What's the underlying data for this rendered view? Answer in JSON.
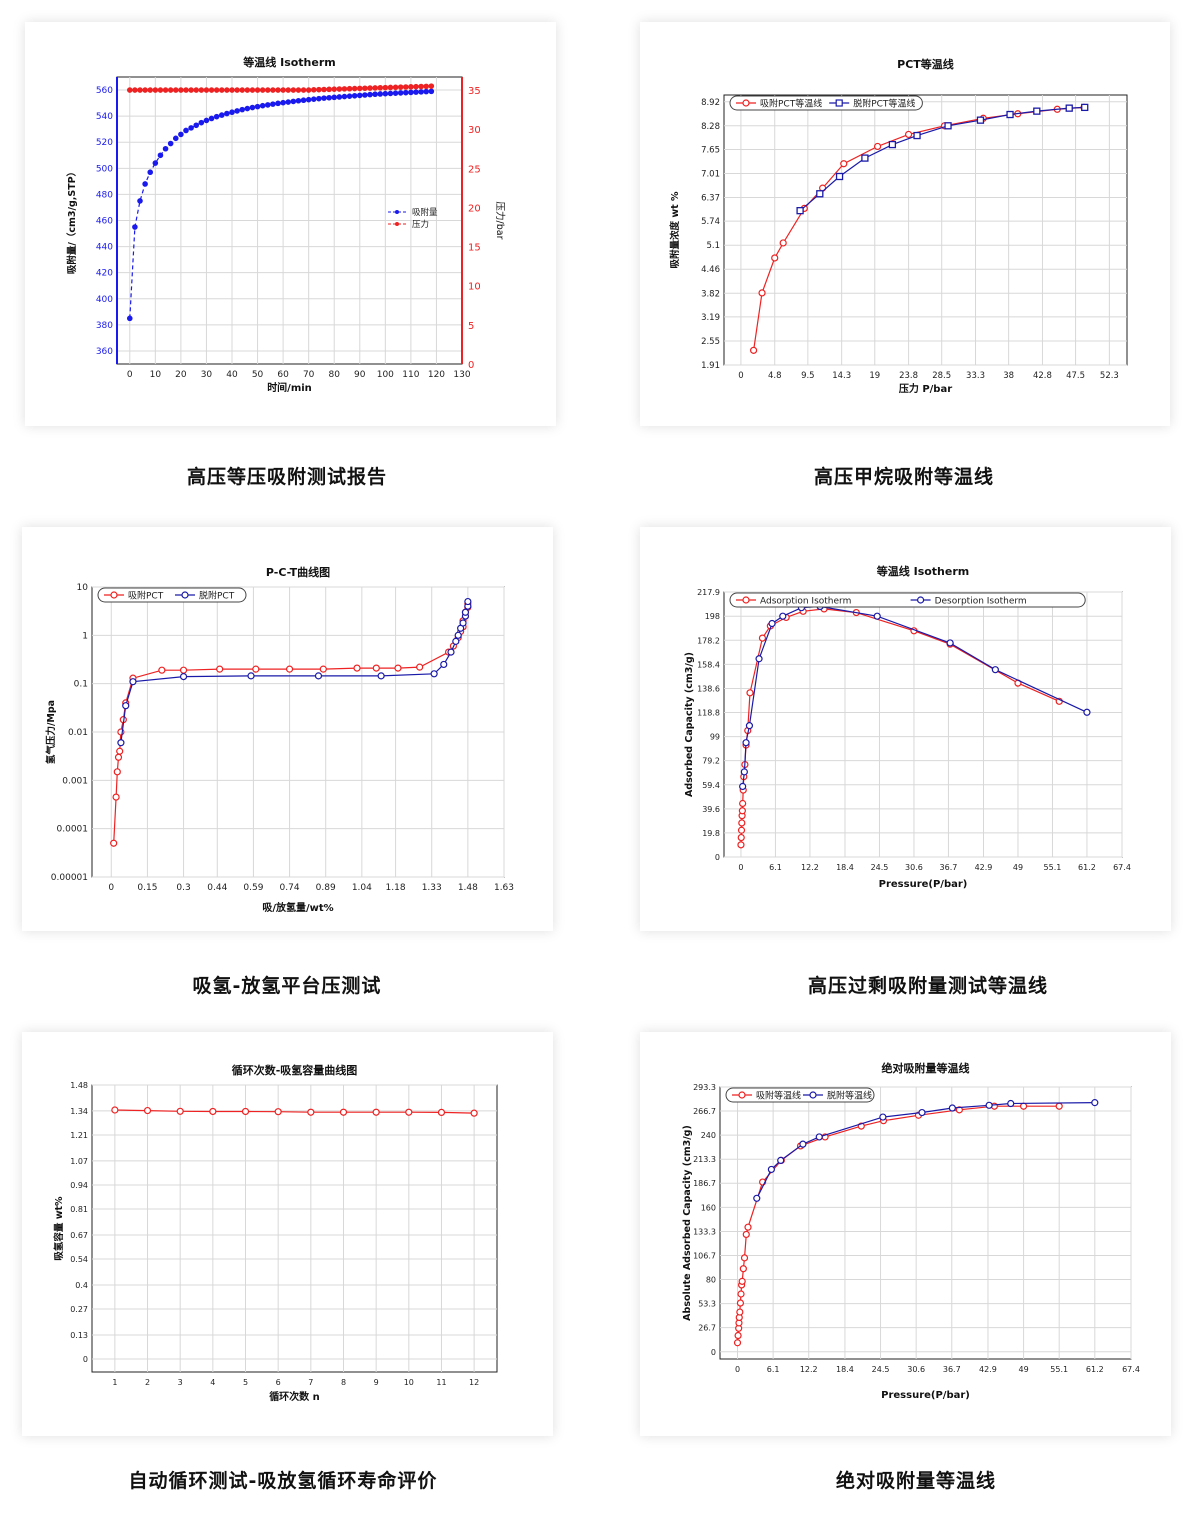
{
  "captions": [
    "高压等压吸附测试报告",
    "高压甲烷吸附等温线",
    "吸氢-放氢平台压测试",
    "高压过剩吸附量测试等温线",
    "自动循环测试-吸放氢循环寿命评价",
    "绝对吸附量等温线"
  ],
  "chart_data": [
    {
      "type": "scatter",
      "title": "等温线 Isotherm",
      "xlabel": "时间/min",
      "ylabel": "吸附量/（cm3/g,STP）",
      "y2label": "压力/bar",
      "xlim": [
        -5,
        130
      ],
      "ylim": [
        350,
        570
      ],
      "y2lim": [
        0,
        36.6667
      ],
      "xticks": [
        0,
        10,
        20,
        30,
        40,
        50,
        60,
        70,
        80,
        90,
        100,
        110,
        120,
        130
      ],
      "yticks": [
        360,
        380,
        400,
        420,
        440,
        460,
        480,
        500,
        520,
        540,
        560
      ],
      "y2ticks": [
        0,
        5,
        10,
        15,
        20,
        25,
        30,
        35
      ],
      "legend_position": "right",
      "series": [
        {
          "name": "吸附量",
          "color": "#1a1aee",
          "axis": "left",
          "line": "dash",
          "x": [
            0,
            2,
            4,
            6,
            8,
            10,
            12,
            14,
            16,
            18,
            20,
            22,
            24,
            26,
            28,
            30,
            32,
            34,
            36,
            38,
            40,
            42,
            44,
            46,
            48,
            50,
            52,
            54,
            56,
            58,
            60,
            62,
            64,
            66,
            68,
            70,
            72,
            74,
            76,
            78,
            80,
            82,
            84,
            86,
            88,
            90,
            92,
            94,
            96,
            98,
            100,
            102,
            104,
            106,
            108,
            110,
            112,
            114,
            116,
            118
          ],
          "y": [
            385,
            455,
            475,
            488,
            497,
            504,
            510,
            515,
            519,
            523,
            526,
            529,
            531,
            533,
            535,
            536.7,
            538.2,
            539.6,
            540.8,
            542,
            543,
            544,
            545,
            545.8,
            546.6,
            547.3,
            548,
            548.6,
            549.2,
            549.8,
            550.3,
            550.8,
            551.3,
            551.8,
            552.2,
            552.6,
            553,
            553.4,
            553.8,
            554.1,
            554.4,
            554.7,
            555,
            555.3,
            555.6,
            555.9,
            556.2,
            556.5,
            556.8,
            557,
            557.2,
            557.4,
            557.6,
            557.8,
            558,
            558.2,
            558.4,
            558.6,
            558.8,
            559
          ]
        },
        {
          "name": "压力",
          "color": "#ee2222",
          "axis": "right",
          "line": "solid",
          "x": [
            0,
            2,
            4,
            6,
            8,
            10,
            12,
            14,
            16,
            18,
            20,
            22,
            24,
            26,
            28,
            30,
            32,
            34,
            36,
            38,
            40,
            42,
            44,
            46,
            48,
            50,
            52,
            54,
            56,
            58,
            60,
            62,
            64,
            66,
            68,
            70,
            72,
            74,
            76,
            78,
            80,
            82,
            84,
            86,
            88,
            90,
            92,
            94,
            96,
            98,
            100,
            102,
            104,
            106,
            108,
            110,
            112,
            114,
            116,
            118
          ],
          "y": [
            35,
            35,
            35,
            35,
            35,
            35,
            35,
            35,
            35,
            35,
            35,
            35,
            35,
            35,
            35,
            35,
            35,
            35,
            35,
            35,
            35,
            35,
            35,
            35,
            35,
            35,
            35,
            35,
            35,
            35,
            35,
            35,
            35,
            35,
            35,
            35,
            35.03,
            35.05,
            35.07,
            35.09,
            35.11,
            35.13,
            35.15,
            35.17,
            35.19,
            35.21,
            35.23,
            35.25,
            35.27,
            35.29,
            35.31,
            35.33,
            35.35,
            35.37,
            35.39,
            35.41,
            35.43,
            35.45,
            35.47,
            35.5
          ]
        }
      ]
    },
    {
      "type": "line",
      "title": "PCT等温线",
      "xlabel": "压力 P/bar",
      "ylabel": "吸附量浓度 wt %",
      "xlim": [
        -2.4,
        54.8
      ],
      "ylim": [
        1.91,
        9.1
      ],
      "xticks": [
        0.0,
        4.8,
        9.5,
        14.3,
        19.0,
        23.8,
        28.5,
        33.3,
        38.0,
        42.8,
        47.5,
        52.3
      ],
      "yticks": [
        1.91,
        2.55,
        3.19,
        3.82,
        4.46,
        5.1,
        5.74,
        6.37,
        7.01,
        7.65,
        8.28,
        8.92
      ],
      "legend_position": "top-left",
      "series": [
        {
          "name": "吸附PCT等温线",
          "color": "#ee2222",
          "marker": "circle",
          "x": [
            1.8,
            3.0,
            4.8,
            6.0,
            9.0,
            11.6,
            14.6,
            19.4,
            23.8,
            28.9,
            34.4,
            39.3,
            44.9,
            48.7
          ],
          "y": [
            2.3,
            3.83,
            4.76,
            5.16,
            6.08,
            6.62,
            7.27,
            7.73,
            8.05,
            8.28,
            8.48,
            8.6,
            8.72,
            8.77
          ]
        },
        {
          "name": "脱附PCT等温线",
          "color": "#1a1aa8",
          "marker": "square",
          "x": [
            8.4,
            11.2,
            14.0,
            17.6,
            21.5,
            25.0,
            29.4,
            34.0,
            38.2,
            42.0,
            46.6,
            48.8
          ],
          "y": [
            6.02,
            6.47,
            6.93,
            7.42,
            7.78,
            8.02,
            8.28,
            8.43,
            8.58,
            8.67,
            8.75,
            8.77
          ]
        }
      ]
    },
    {
      "type": "line",
      "title": "P-C-T曲线图",
      "xlabel": "吸/放氢量/wt%",
      "ylabel": "氢气压力/Mpa",
      "xlim": [
        -0.08,
        1.63
      ],
      "ylim": [
        1e-05,
        10
      ],
      "yscale": "log",
      "xticks": [
        0.0,
        0.15,
        0.3,
        0.44,
        0.59,
        0.74,
        0.89,
        1.04,
        1.18,
        1.33,
        1.48,
        1.63
      ],
      "yticks": [
        "0.00001",
        "0.0001",
        "0.001",
        "0.01",
        "0.1",
        "1",
        "10"
      ],
      "legend_position": "top-left",
      "series": [
        {
          "name": "吸附PCT",
          "color": "#ee2222",
          "marker": "circle",
          "x": [
            0.01,
            0.02,
            0.025,
            0.03,
            0.035,
            0.04,
            0.05,
            0.06,
            0.09,
            0.21,
            0.3,
            0.45,
            0.6,
            0.74,
            0.88,
            1.02,
            1.1,
            1.19,
            1.28,
            1.4,
            1.42,
            1.44,
            1.45,
            1.46,
            1.46,
            1.47,
            1.47,
            1.48,
            1.48
          ],
          "y": [
            5e-05,
            0.00045,
            0.0015,
            0.003,
            0.004,
            0.01,
            0.018,
            0.04,
            0.13,
            0.19,
            0.19,
            0.2,
            0.2,
            0.2,
            0.2,
            0.21,
            0.21,
            0.21,
            0.22,
            0.45,
            0.6,
            0.9,
            1.2,
            1.5,
            2.0,
            2.5,
            3.0,
            3.8,
            4.5
          ]
        },
        {
          "name": "脱附PCT",
          "color": "#1a1aa8",
          "marker": "circle",
          "x": [
            0.04,
            0.06,
            0.09,
            0.3,
            0.58,
            0.86,
            1.12,
            1.34,
            1.38,
            1.41,
            1.43,
            1.44,
            1.45,
            1.46,
            1.47,
            1.47,
            1.48,
            1.48
          ],
          "y": [
            0.006,
            0.035,
            0.11,
            0.14,
            0.145,
            0.145,
            0.145,
            0.16,
            0.25,
            0.45,
            0.75,
            1.0,
            1.4,
            1.8,
            2.5,
            3.0,
            4.0,
            5.0
          ]
        }
      ]
    },
    {
      "type": "line",
      "title": "等温线 Isotherm",
      "xlabel": "Pressure(P/bar)",
      "ylabel": "Adsorbed Capacity (cm3/g)",
      "xlim": [
        -3.0,
        67.4
      ],
      "ylim": [
        0.0,
        217.9
      ],
      "xticks": [
        0.0,
        6.1,
        12.2,
        18.4,
        24.5,
        30.6,
        36.7,
        42.9,
        49.0,
        55.1,
        61.2,
        67.4
      ],
      "yticks": [
        0.0,
        19.8,
        39.6,
        59.4,
        79.2,
        99.0,
        118.8,
        138.6,
        158.4,
        178.2,
        198.0,
        217.9
      ],
      "legend_position": "top-left",
      "series": [
        {
          "name": "Adsorption Isotherm",
          "color": "#ee2222",
          "marker": "circle",
          "x": [
            0.0,
            0.05,
            0.1,
            0.15,
            0.2,
            0.25,
            0.3,
            0.4,
            0.5,
            0.7,
            0.9,
            1.2,
            1.6,
            3.8,
            5.2,
            8.0,
            11.0,
            14.7,
            20.4,
            30.6,
            37.0,
            49.0,
            56.3
          ],
          "y": [
            10.0,
            16.0,
            22.0,
            28.0,
            34.0,
            38.0,
            44.0,
            55.0,
            66.0,
            76.0,
            92.0,
            104.0,
            135.0,
            180.0,
            190.0,
            197.0,
            202.0,
            204.0,
            201.0,
            186.0,
            175.0,
            143.0,
            128.0
          ]
        },
        {
          "name": "Desorption Isotherm",
          "color": "#1a1aa8",
          "marker": "circle",
          "x": [
            0.3,
            0.6,
            0.9,
            1.5,
            3.2,
            5.5,
            7.4,
            10.7,
            14.0,
            24.1,
            37.0,
            45.0,
            61.2
          ],
          "y": [
            58.0,
            70.0,
            94.0,
            108.0,
            163.0,
            192.0,
            198.0,
            205.0,
            206.0,
            198.0,
            176.0,
            154.0,
            119.0
          ]
        }
      ]
    },
    {
      "type": "line",
      "title": "循环次数-吸氢容量曲线图",
      "xlabel": "循环次数 n",
      "ylabel": "吸氢容量 wt%",
      "xlim": [
        0.3,
        12.7
      ],
      "ylim": [
        -0.07,
        1.48
      ],
      "xticks": [
        1,
        2,
        3,
        4,
        5,
        6,
        7,
        8,
        9,
        10,
        11,
        12
      ],
      "yticks": [
        0.0,
        0.13,
        0.27,
        0.4,
        0.54,
        0.67,
        0.81,
        0.94,
        1.07,
        1.21,
        1.34,
        1.48
      ],
      "series": [
        {
          "name": "",
          "color": "#ee2222",
          "marker": "circle",
          "x": [
            1,
            2,
            3,
            4,
            5,
            6,
            7,
            8,
            9,
            10,
            11,
            12
          ],
          "y": [
            1.345,
            1.342,
            1.338,
            1.337,
            1.337,
            1.336,
            1.333,
            1.333,
            1.333,
            1.333,
            1.332,
            1.328
          ]
        }
      ]
    },
    {
      "type": "line",
      "title": "绝对吸附量等温线",
      "xlabel": "Pressure(P/bar)",
      "ylabel": "Absolute Adsorbed Capacity (cm3/g)",
      "xlim": [
        -3.0,
        67.4
      ],
      "ylim": [
        -8.0,
        293.3
      ],
      "xticks": [
        0.0,
        6.1,
        12.2,
        18.4,
        24.5,
        30.6,
        36.7,
        42.9,
        49.0,
        55.1,
        61.2,
        67.4
      ],
      "yticks": [
        0.0,
        26.7,
        53.3,
        80.0,
        106.7,
        133.3,
        160.0,
        186.7,
        213.3,
        240.0,
        266.7,
        293.3
      ],
      "legend_position": "top-left",
      "series": [
        {
          "name": "吸附等温线",
          "color": "#ee2222",
          "marker": "circle",
          "x": [
            0.0,
            0.1,
            0.2,
            0.25,
            0.3,
            0.4,
            0.5,
            0.6,
            0.7,
            0.8,
            1.0,
            1.2,
            1.5,
            1.8,
            4.3,
            7.5,
            10.8,
            15.0,
            21.2,
            25.0,
            31.0,
            38.0,
            44.0,
            49.0,
            55.1
          ],
          "y": [
            10.0,
            18.0,
            26.0,
            32.0,
            38.0,
            44.0,
            54.0,
            64.0,
            74.0,
            78.0,
            92.0,
            104.0,
            130.0,
            138.0,
            188.0,
            212.0,
            228.0,
            238.0,
            250.0,
            256.0,
            262.0,
            268.0,
            272.0,
            272.0,
            272.0
          ]
        },
        {
          "name": "脱附等温线",
          "color": "#1a1aa8",
          "marker": "circle",
          "x": [
            3.3,
            5.8,
            7.4,
            11.2,
            14.0,
            24.9,
            31.6,
            36.8,
            43.1,
            46.8,
            61.2
          ],
          "y": [
            170.0,
            202.0,
            212.0,
            230.0,
            238.0,
            260.0,
            265.0,
            270.0,
            273.0,
            275.0,
            276.0
          ]
        }
      ]
    }
  ]
}
